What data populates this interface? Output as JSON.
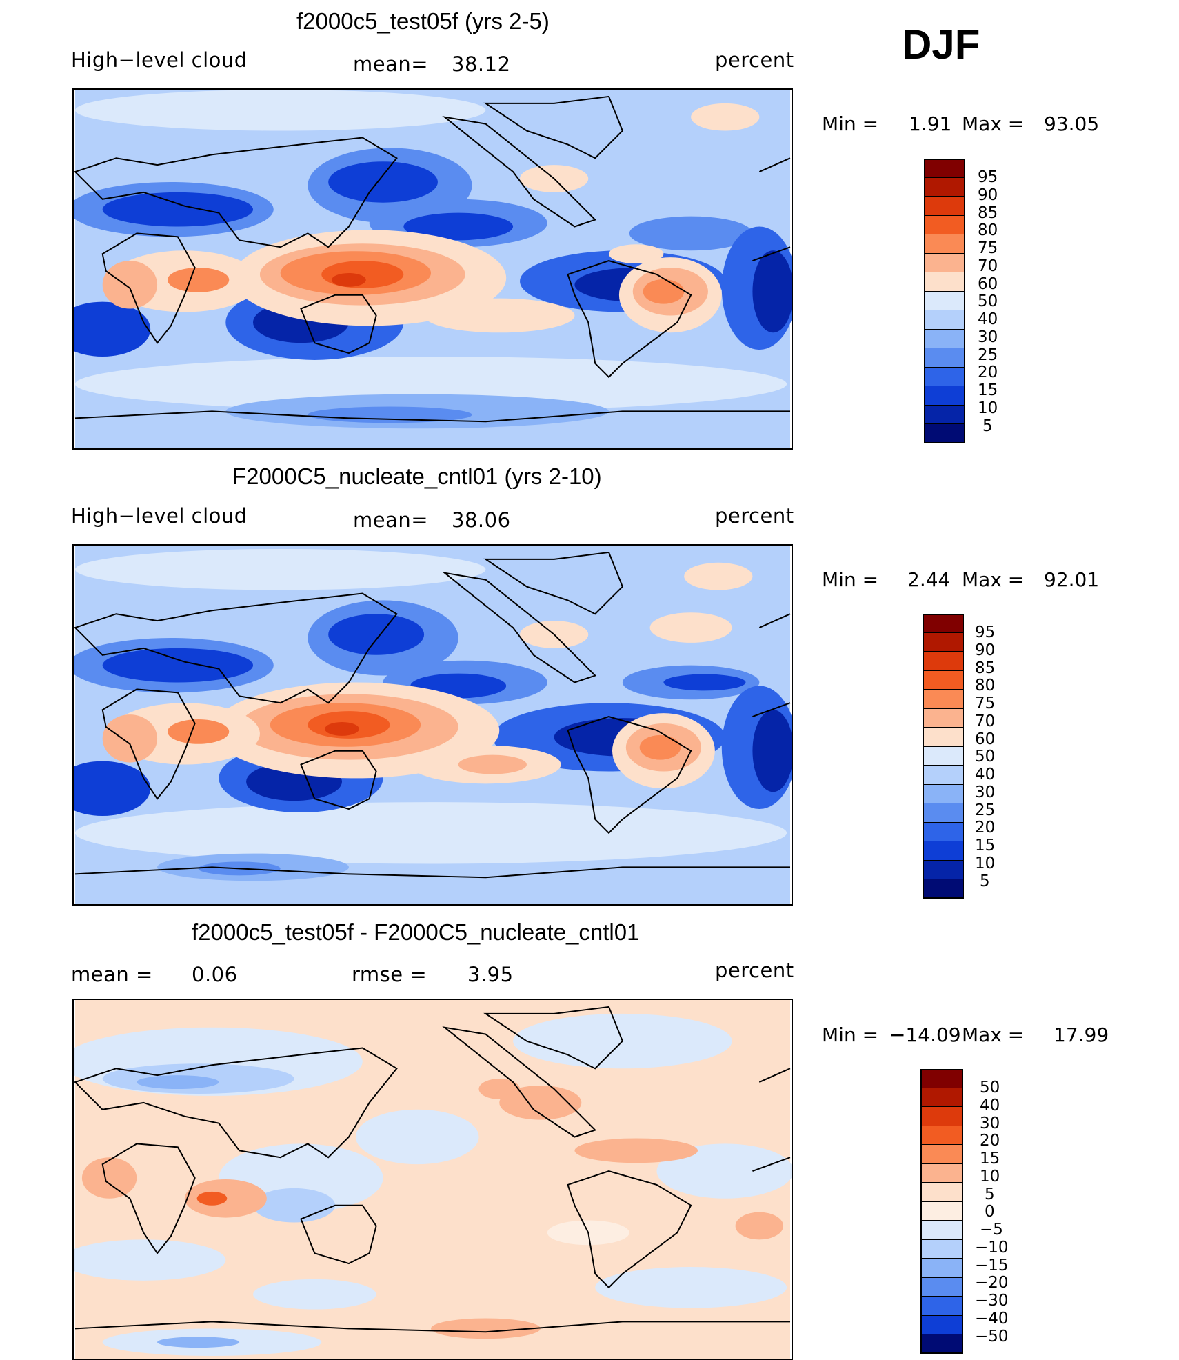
{
  "season": "DJF",
  "panels": [
    {
      "title": "f2000c5_test05f (yrs 2-5)",
      "left_label": "High−level cloud",
      "stat1_label": "mean=",
      "stat1_value": "38.12",
      "units": "percent",
      "min_label": "Min  =",
      "min_value": "1.91",
      "max_label": "Max  =",
      "max_value": "93.05",
      "colorbar_levels": [
        "95",
        "90",
        "85",
        "80",
        "75",
        "70",
        "60",
        "50",
        "40",
        "30",
        "25",
        "20",
        "15",
        "10",
        "5"
      ]
    },
    {
      "title": "F2000C5_nucleate_cntl01 (yrs 2-10)",
      "left_label": "High−level cloud",
      "stat1_label": "mean=",
      "stat1_value": "38.06",
      "units": "percent",
      "min_label": "Min  =",
      "min_value": "2.44",
      "max_label": "Max  =",
      "max_value": "92.01",
      "colorbar_levels": [
        "95",
        "90",
        "85",
        "80",
        "75",
        "70",
        "60",
        "50",
        "40",
        "30",
        "25",
        "20",
        "15",
        "10",
        "5"
      ]
    },
    {
      "title": "f2000c5_test05f - F2000C5_nucleate_cntl01",
      "left_label": "mean  =",
      "left_value": "0.06",
      "stat1_label": "rmse  =",
      "stat1_value": "3.95",
      "units": "percent",
      "min_label": "Min  =",
      "min_value": "−14.09",
      "max_label": "Max  =",
      "max_value": "17.99",
      "colorbar_levels": [
        "50",
        "40",
        "30",
        "20",
        "15",
        "10",
        "5",
        "0",
        "−5",
        "−10",
        "−15",
        "−20",
        "−30",
        "−40",
        "−50"
      ]
    }
  ],
  "colors": {
    "abs_scale": [
      "#800000",
      "#b01800",
      "#dd3a0c",
      "#f25c22",
      "#fa8a55",
      "#fbb38f",
      "#fde0cb",
      "#dbe9fb",
      "#b4d0fb",
      "#8ab3f7",
      "#5a8cf0",
      "#2e64e8",
      "#0e3ed6",
      "#0524a8",
      "#000b74"
    ],
    "diff_scale": [
      "#800000",
      "#b01800",
      "#dd3a0c",
      "#f25c22",
      "#fa8a55",
      "#fbb38f",
      "#fde0cb",
      "#fdeee2",
      "#dbe9fb",
      "#b4d0fb",
      "#8ab3f7",
      "#5a8cf0",
      "#2e64e8",
      "#0e3ed6",
      "#000b74"
    ]
  }
}
